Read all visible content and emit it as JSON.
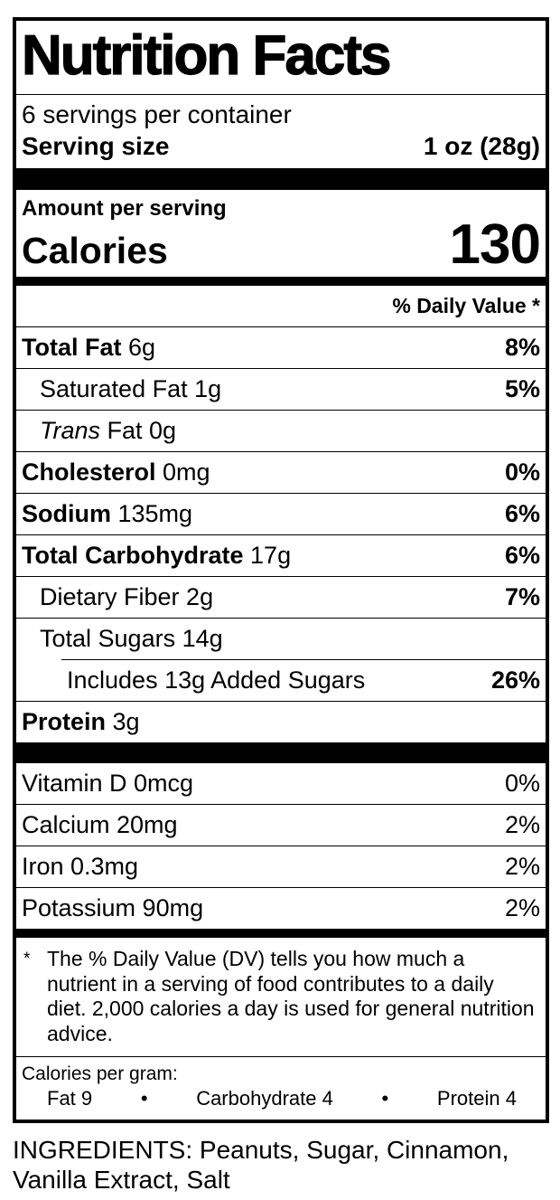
{
  "colors": {
    "text": "#000000",
    "background": "#ffffff",
    "rule": "#000000"
  },
  "label": {
    "title": "Nutrition Facts",
    "servings_per_container": "6 servings per container",
    "serving_size": {
      "label": "Serving size",
      "value": "1 oz (28g)"
    },
    "amount_per_serving": "Amount per serving",
    "calories": {
      "label": "Calories",
      "value": "130"
    },
    "daily_value_header": "% Daily Value *",
    "nutrients": [
      {
        "name": "Total Fat",
        "amount": "6g",
        "dv": "8%",
        "name_bold": true,
        "name_italic": false,
        "dv_bold": true,
        "indent": 0,
        "rule": "full"
      },
      {
        "name": "Saturated Fat",
        "amount": "1g",
        "dv": "5%",
        "name_bold": false,
        "name_italic": false,
        "dv_bold": true,
        "indent": 1,
        "rule": "full"
      },
      {
        "name": "Trans",
        "amount": "Fat 0g",
        "dv": "",
        "name_bold": false,
        "name_italic": true,
        "dv_bold": false,
        "indent": 1,
        "rule": "full"
      },
      {
        "name": "Cholesterol",
        "amount": "0mg",
        "dv": "0%",
        "name_bold": true,
        "name_italic": false,
        "dv_bold": true,
        "indent": 0,
        "rule": "full"
      },
      {
        "name": "Sodium",
        "amount": "135mg",
        "dv": "6%",
        "name_bold": true,
        "name_italic": false,
        "dv_bold": true,
        "indent": 0,
        "rule": "full"
      },
      {
        "name": "Total Carbohydrate",
        "amount": "17g",
        "dv": "6%",
        "name_bold": true,
        "name_italic": false,
        "dv_bold": true,
        "indent": 0,
        "rule": "full"
      },
      {
        "name": "Dietary Fiber",
        "amount": "2g",
        "dv": "7%",
        "name_bold": false,
        "name_italic": false,
        "dv_bold": true,
        "indent": 1,
        "rule": "full"
      },
      {
        "name": "Total Sugars",
        "amount": "14g",
        "dv": "",
        "name_bold": false,
        "name_italic": false,
        "dv_bold": false,
        "indent": 1,
        "rule": "full"
      },
      {
        "name": "Includes 13g Added Sugars",
        "amount": "",
        "dv": "26%",
        "name_bold": false,
        "name_italic": false,
        "dv_bold": true,
        "indent": 2,
        "rule": "indent"
      },
      {
        "name": "Protein",
        "amount": "3g",
        "dv": "",
        "name_bold": true,
        "name_italic": false,
        "dv_bold": false,
        "indent": 0,
        "rule": "full"
      }
    ],
    "vitamins": [
      {
        "name": "Vitamin D",
        "amount": "0mcg",
        "dv": "0%"
      },
      {
        "name": "Calcium",
        "amount": "20mg",
        "dv": "2%"
      },
      {
        "name": "Iron",
        "amount": "0.3mg",
        "dv": "2%"
      },
      {
        "name": "Potassium",
        "amount": "90mg",
        "dv": "2%"
      }
    ],
    "footnote": {
      "marker": "*",
      "text": "The % Daily Value (DV) tells you how much a nutrient in a serving of food contributes to a daily diet. 2,000 calories a day is used for general nutrition advice."
    },
    "calories_per_gram": {
      "label": "Calories per gram:",
      "separator": "•",
      "items": [
        "Fat 9",
        "Carbohydrate 4",
        "Protein 4"
      ]
    }
  },
  "ingredients": "INGREDIENTS: Peanuts, Sugar, Cinnamon, Vanilla Extract, Salt"
}
